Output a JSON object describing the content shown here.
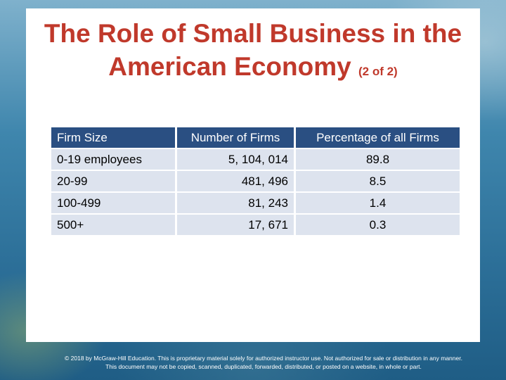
{
  "slide": {
    "title_main": "The Role of Small Business in the American Economy",
    "title_suffix": "(2 of 2)"
  },
  "table": {
    "headers": [
      "Firm Size",
      "Number of Firms",
      "Percentage of all Firms"
    ],
    "rows": [
      [
        "0-19 employees",
        "5, 104, 014",
        "89.8"
      ],
      [
        "20-99",
        "481, 496",
        "8.5"
      ],
      [
        "100-499",
        "81, 243",
        "1.4"
      ],
      [
        "500+",
        "17, 671",
        "0.3"
      ]
    ]
  },
  "footer": {
    "line1": "© 2018 by McGraw-Hill Education. This is proprietary material solely for authorized instructor use. Not authorized for sale or distribution in any manner.",
    "line2": "This document may not be copied, scanned, duplicated, forwarded, distributed, or posted on a website, in whole or part."
  },
  "colors": {
    "title": "#c0392b",
    "header_bg": "#2a4f82",
    "row_bg": "#dde3ee"
  }
}
